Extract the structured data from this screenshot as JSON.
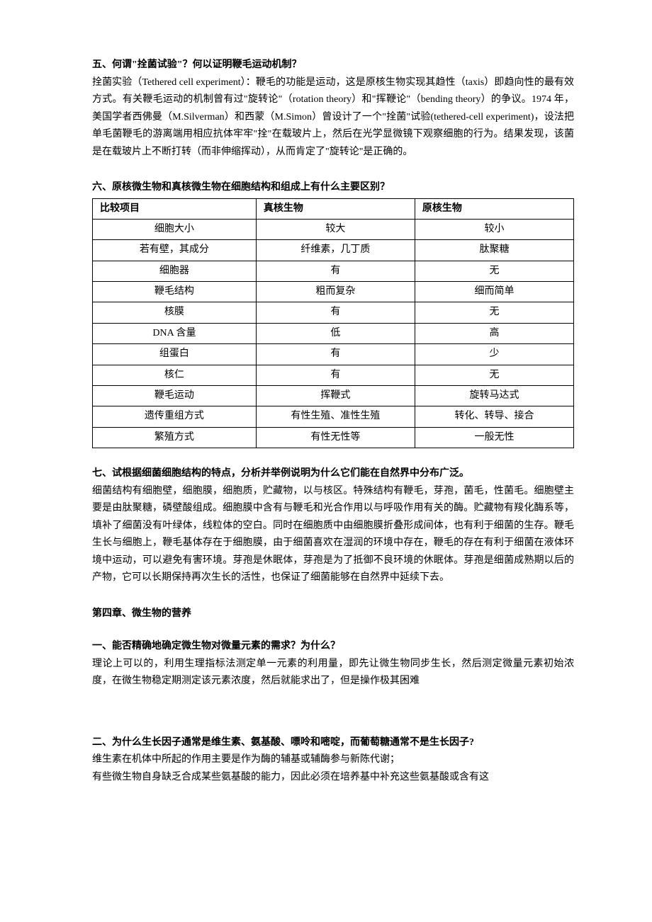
{
  "q5": {
    "heading": "五、何谓\"拴菌试验\"？何以证明鞭毛运动机制？",
    "body": "拴菌实验（Tethered cell experiment）：鞭毛的功能是运动，这是原核生物实现其趋性（taxis）即趋向性的最有效方式。有关鞭毛运动的机制曾有过\"旋转论\"（rotation theory）和\"挥鞭论\"（bending theory）的争议。1974 年，美国学者西佛曼（M.Silverman）和西蒙（M.Simon）曾设计了一个\"拴菌\"试验(tethered-cell experiment)，设法把单毛菌鞭毛的游离端用相应抗体牢牢\"拴\"在载玻片上，然后在光学显微镜下观察细胞的行为。结果发现，该菌是在载玻片上不断打转（而非伸缩挥动），从而肯定了\"旋转论\"是正确的。"
  },
  "q6": {
    "heading": "六、原核微生物和真核微生物在细胞结构和组成上有什么主要区别？",
    "table": {
      "headers": [
        "比较项目",
        "真核生物",
        "原核生物"
      ],
      "rows": [
        [
          "细胞大小",
          "较大",
          "较小"
        ],
        [
          "若有壁，其成分",
          "纤维素，几丁质",
          "肽聚糖"
        ],
        [
          "细胞器",
          "有",
          "无"
        ],
        [
          "鞭毛结构",
          "粗而复杂",
          "细而简单"
        ],
        [
          "核膜",
          "有",
          "无"
        ],
        [
          "DNA 含量",
          "低",
          "高"
        ],
        [
          "组蛋白",
          "有",
          "少"
        ],
        [
          "核仁",
          "有",
          "无"
        ],
        [
          "鞭毛运动",
          "挥鞭式",
          "旋转马达式"
        ],
        [
          "遗传重组方式",
          "有性生殖、准性生殖",
          "转化、转导、接合"
        ],
        [
          "繁殖方式",
          "有性无性等",
          "一般无性"
        ]
      ]
    }
  },
  "q7": {
    "heading": "七、试根据细菌细胞结构的特点，分析并举例说明为什么它们能在自然界中分布广泛。",
    "body": "细菌结构有细胞壁，细胞膜，细胞质，贮藏物，以与核区。特殊结构有鞭毛，芽孢，菌毛，性菌毛。细胞壁主要是由肽聚糖，磷壁酸组成。细胞膜中含有与鞭毛和光合作用以与呼吸作用有关的酶。贮藏物有羧化酶系等，填补了细菌没有叶绿体，线粒体的空白。同时在细胞质中由细胞膜折叠形成间体，也有利于细菌的生存。鞭毛生长与细胞上，鞭毛基体存在于细胞膜，由于细菌喜欢在湿润的环境中存在，鞭毛的存在有利于细菌在液体环境中运动，可以避免有害环境。芽孢是休眠体，芽孢是为了抵御不良环境的休眠体。芽孢是细菌成熟期以后的产物，它可以长期保持再次生长的活性，也保证了细菌能够在自然界中延续下去。"
  },
  "chapter4": {
    "title": "第四章、微生物的营养"
  },
  "q4_1": {
    "heading": "一、能否精确地确定微生物对微量元素的需求？为什么？",
    "body": "理论上可以的，利用生理指标法测定单一元素的利用量，即先让微生物同步生长，然后测定微量元素初始浓度，在微生物稳定期测定该元素浓度，然后就能求出了，但是操作极其困难"
  },
  "q4_2": {
    "heading": "二、为什么生长因子通常是维生素、氨基酸、嘌呤和嘧啶，而葡萄糖通常不是生长因子?",
    "line1": "维生素在机体中所起的作用主要是作为酶的辅基或辅酶参与新陈代谢；",
    "line2": "有些微生物自身缺乏合成某些氨基酸的能力，因此必须在培养基中补充这些氨基酸或含有这"
  }
}
